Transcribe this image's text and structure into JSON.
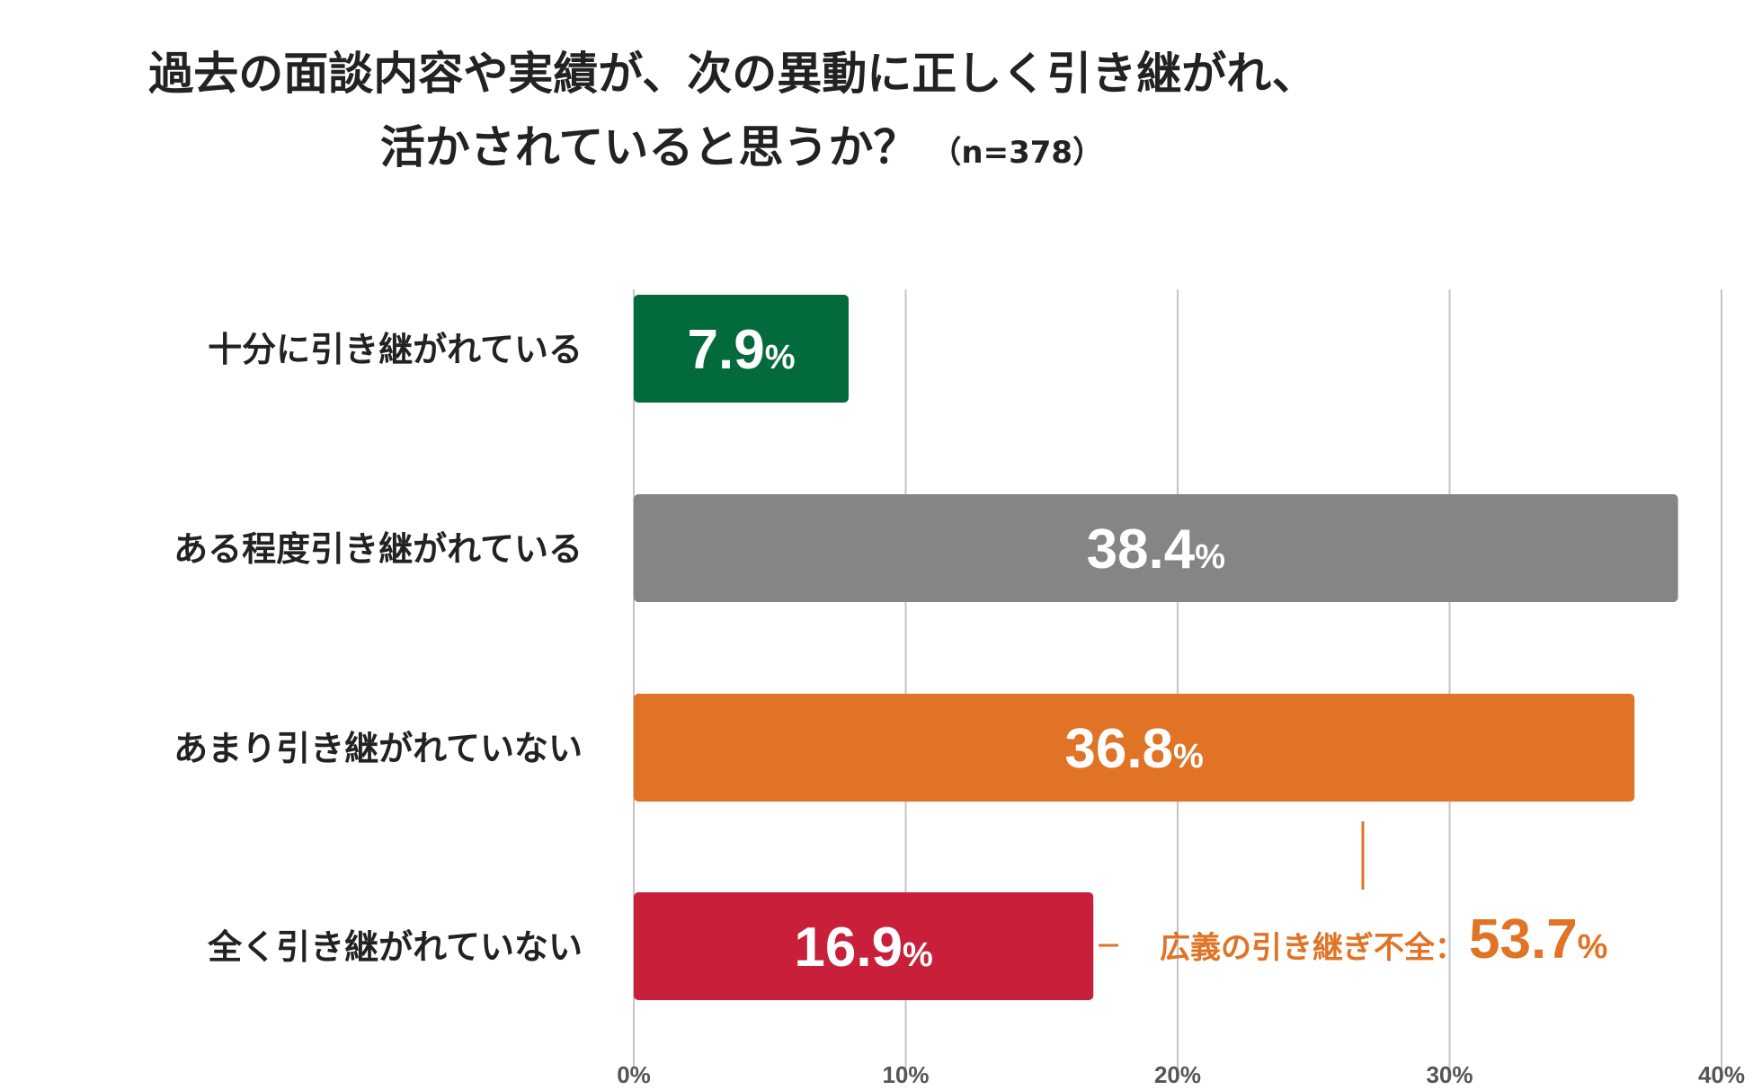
{
  "title": {
    "line1": "過去の面談内容や実績が、次の異動に正しく引き継がれ、",
    "line2": "活かされていると思うか？",
    "sample": "（n=378）"
  },
  "chart_data": {
    "type": "bar",
    "orientation": "horizontal",
    "categories": [
      "十分に引き継がれている",
      "ある程度引き継がれている",
      "あまり引き継がれていない",
      "全く引き継がれていない"
    ],
    "values": [
      7.9,
      38.4,
      36.8,
      16.9
    ],
    "value_unit": "%",
    "colors": [
      "#036a3c",
      "#858585",
      "#e07325",
      "#c81f3a"
    ],
    "xlim": [
      0,
      40
    ],
    "xticks": [
      0,
      10,
      20,
      30,
      40
    ],
    "xtick_labels": [
      "0%",
      "10%",
      "20%",
      "30%",
      "40%"
    ],
    "grid": true,
    "callout": {
      "label": "広義の引き継ぎ不全：",
      "value": "53.7",
      "unit": "%",
      "color": "#e07325",
      "spans_categories": [
        "あまり引き継がれていない",
        "全く引き継がれていない"
      ]
    }
  }
}
